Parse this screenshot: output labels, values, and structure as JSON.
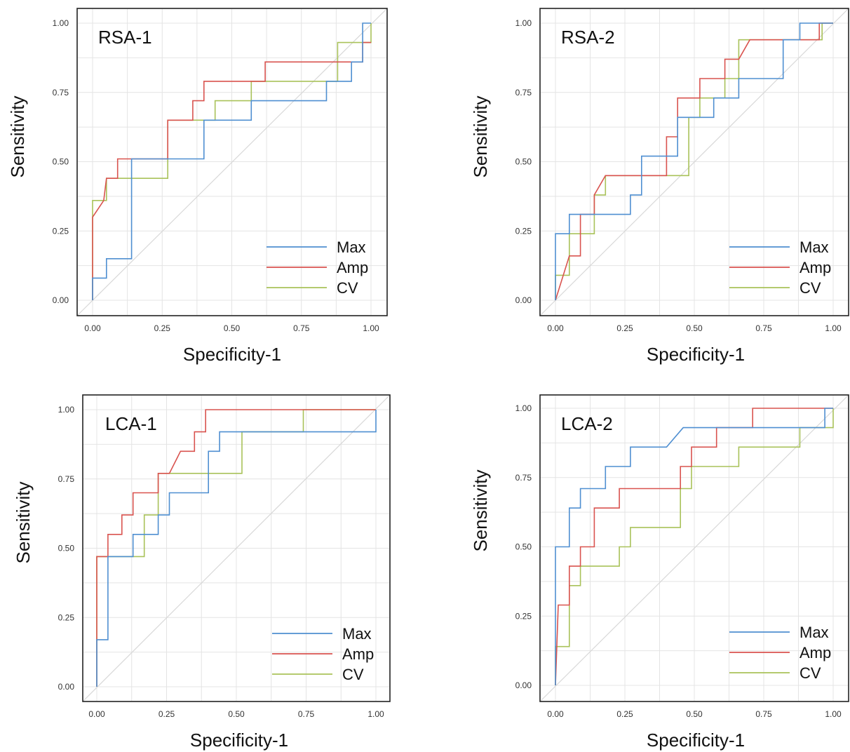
{
  "chart_data": [
    {
      "type": "line",
      "title": "RSA-1",
      "xlabel": "Specificity-1",
      "ylabel": "Sensitivity",
      "xlim": [
        0,
        1
      ],
      "ylim": [
        0,
        1
      ],
      "x_ticks": [
        "0.00",
        "0.25",
        "0.50",
        "0.75",
        "1.00"
      ],
      "y_ticks": [
        "0.00",
        "0.25",
        "0.50",
        "0.75",
        "1.00"
      ],
      "grid": true,
      "diagonal_reference": true,
      "legend_placement": "bottom-right",
      "series": [
        {
          "name": "Max",
          "color": "#4f8fd1",
          "points": [
            [
              0,
              0
            ],
            [
              0,
              0.08
            ],
            [
              0.05,
              0.08
            ],
            [
              0.05,
              0.15
            ],
            [
              0.14,
              0.15
            ],
            [
              0.14,
              0.51
            ],
            [
              0.4,
              0.51
            ],
            [
              0.4,
              0.65
            ],
            [
              0.57,
              0.65
            ],
            [
              0.57,
              0.72
            ],
            [
              0.84,
              0.72
            ],
            [
              0.84,
              0.79
            ],
            [
              0.93,
              0.79
            ],
            [
              0.93,
              0.86
            ],
            [
              0.97,
              0.86
            ],
            [
              0.97,
              1.0
            ],
            [
              1.0,
              1.0
            ]
          ]
        },
        {
          "name": "Amp",
          "color": "#d9534f",
          "points": [
            [
              0,
              0
            ],
            [
              0,
              0.3
            ],
            [
              0.04,
              0.36
            ],
            [
              0.05,
              0.44
            ],
            [
              0.09,
              0.44
            ],
            [
              0.09,
              0.51
            ],
            [
              0.27,
              0.51
            ],
            [
              0.27,
              0.65
            ],
            [
              0.36,
              0.65
            ],
            [
              0.36,
              0.72
            ],
            [
              0.4,
              0.72
            ],
            [
              0.4,
              0.79
            ],
            [
              0.62,
              0.79
            ],
            [
              0.62,
              0.86
            ],
            [
              0.97,
              0.86
            ],
            [
              0.97,
              0.93
            ],
            [
              1.0,
              0.93
            ]
          ]
        },
        {
          "name": "CV",
          "color": "#a9c25a",
          "points": [
            [
              0,
              0
            ],
            [
              0,
              0.36
            ],
            [
              0.05,
              0.36
            ],
            [
              0.05,
              0.44
            ],
            [
              0.27,
              0.44
            ],
            [
              0.27,
              0.65
            ],
            [
              0.44,
              0.65
            ],
            [
              0.44,
              0.72
            ],
            [
              0.57,
              0.72
            ],
            [
              0.57,
              0.79
            ],
            [
              0.88,
              0.79
            ],
            [
              0.88,
              0.93
            ],
            [
              0.96,
              0.93
            ],
            [
              0.96,
              0.93
            ],
            [
              1.0,
              0.93
            ],
            [
              1.0,
              1.0
            ]
          ]
        }
      ]
    },
    {
      "type": "line",
      "title": "RSA-2",
      "xlabel": "Specificity-1",
      "ylabel": "Sensitivity",
      "xlim": [
        0,
        1
      ],
      "ylim": [
        0,
        1
      ],
      "x_ticks": [
        "0.00",
        "0.25",
        "0.50",
        "0.75",
        "1.00"
      ],
      "y_ticks": [
        "0.00",
        "0.25",
        "0.50",
        "0.75",
        "1.00"
      ],
      "grid": true,
      "diagonal_reference": true,
      "legend_placement": "bottom-right",
      "series": [
        {
          "name": "Max",
          "color": "#4f8fd1",
          "points": [
            [
              0,
              0
            ],
            [
              0,
              0.24
            ],
            [
              0.05,
              0.24
            ],
            [
              0.05,
              0.31
            ],
            [
              0.27,
              0.31
            ],
            [
              0.27,
              0.38
            ],
            [
              0.31,
              0.38
            ],
            [
              0.31,
              0.52
            ],
            [
              0.44,
              0.52
            ],
            [
              0.44,
              0.66
            ],
            [
              0.57,
              0.66
            ],
            [
              0.57,
              0.73
            ],
            [
              0.66,
              0.73
            ],
            [
              0.66,
              0.8
            ],
            [
              0.82,
              0.8
            ],
            [
              0.82,
              0.94
            ],
            [
              0.88,
              0.94
            ],
            [
              0.88,
              1.0
            ],
            [
              1.0,
              1.0
            ]
          ]
        },
        {
          "name": "Amp",
          "color": "#d9534f",
          "points": [
            [
              0,
              0
            ],
            [
              0.05,
              0.16
            ],
            [
              0.09,
              0.16
            ],
            [
              0.09,
              0.31
            ],
            [
              0.14,
              0.31
            ],
            [
              0.14,
              0.38
            ],
            [
              0.18,
              0.45
            ],
            [
              0.4,
              0.45
            ],
            [
              0.4,
              0.59
            ],
            [
              0.44,
              0.59
            ],
            [
              0.44,
              0.73
            ],
            [
              0.52,
              0.73
            ],
            [
              0.52,
              0.8
            ],
            [
              0.61,
              0.8
            ],
            [
              0.61,
              0.87
            ],
            [
              0.66,
              0.87
            ],
            [
              0.7,
              0.94
            ],
            [
              0.95,
              0.94
            ],
            [
              0.95,
              1.0
            ],
            [
              1.0,
              1.0
            ]
          ]
        },
        {
          "name": "CV",
          "color": "#a9c25a",
          "points": [
            [
              0,
              0
            ],
            [
              0,
              0.09
            ],
            [
              0.05,
              0.09
            ],
            [
              0.05,
              0.24
            ],
            [
              0.14,
              0.24
            ],
            [
              0.14,
              0.38
            ],
            [
              0.18,
              0.38
            ],
            [
              0.18,
              0.45
            ],
            [
              0.48,
              0.45
            ],
            [
              0.48,
              0.66
            ],
            [
              0.52,
              0.66
            ],
            [
              0.52,
              0.73
            ],
            [
              0.61,
              0.73
            ],
            [
              0.61,
              0.8
            ],
            [
              0.66,
              0.8
            ],
            [
              0.66,
              0.94
            ],
            [
              0.96,
              0.94
            ],
            [
              0.96,
              1.0
            ],
            [
              1.0,
              1.0
            ]
          ]
        }
      ]
    },
    {
      "type": "line",
      "title": "LCA-1",
      "xlabel": "Specificity-1",
      "ylabel": "Sensitivity",
      "xlim": [
        0,
        1
      ],
      "ylim": [
        0,
        1
      ],
      "x_ticks": [
        "0.00",
        "0.25",
        "0.50",
        "0.75",
        "1.00"
      ],
      "y_ticks": [
        "0.00",
        "0.25",
        "0.50",
        "0.75",
        "1.00"
      ],
      "grid": true,
      "diagonal_reference": true,
      "legend_placement": "bottom-right",
      "series": [
        {
          "name": "Max",
          "color": "#4f8fd1",
          "points": [
            [
              0,
              0
            ],
            [
              0,
              0.17
            ],
            [
              0.04,
              0.17
            ],
            [
              0.04,
              0.47
            ],
            [
              0.13,
              0.47
            ],
            [
              0.13,
              0.55
            ],
            [
              0.22,
              0.55
            ],
            [
              0.22,
              0.62
            ],
            [
              0.26,
              0.62
            ],
            [
              0.26,
              0.7
            ],
            [
              0.4,
              0.7
            ],
            [
              0.4,
              0.85
            ],
            [
              0.44,
              0.85
            ],
            [
              0.44,
              0.92
            ],
            [
              1.0,
              0.92
            ],
            [
              1.0,
              1.0
            ]
          ]
        },
        {
          "name": "Amp",
          "color": "#d9534f",
          "points": [
            [
              0,
              0
            ],
            [
              0,
              0.47
            ],
            [
              0.04,
              0.47
            ],
            [
              0.04,
              0.55
            ],
            [
              0.09,
              0.55
            ],
            [
              0.09,
              0.62
            ],
            [
              0.13,
              0.62
            ],
            [
              0.13,
              0.7
            ],
            [
              0.22,
              0.7
            ],
            [
              0.22,
              0.77
            ],
            [
              0.26,
              0.77
            ],
            [
              0.3,
              0.85
            ],
            [
              0.35,
              0.85
            ],
            [
              0.35,
              0.92
            ],
            [
              0.39,
              0.92
            ],
            [
              0.39,
              1.0
            ],
            [
              1.0,
              1.0
            ]
          ]
        },
        {
          "name": "CV",
          "color": "#a9c25a",
          "points": [
            [
              0,
              0
            ],
            [
              0,
              0.47
            ],
            [
              0.17,
              0.47
            ],
            [
              0.17,
              0.62
            ],
            [
              0.22,
              0.62
            ],
            [
              0.22,
              0.77
            ],
            [
              0.52,
              0.77
            ],
            [
              0.52,
              0.92
            ],
            [
              0.74,
              0.92
            ],
            [
              0.74,
              1.0
            ],
            [
              1.0,
              1.0
            ]
          ]
        }
      ]
    },
    {
      "type": "line",
      "title": "LCA-2",
      "xlabel": "Specificity-1",
      "ylabel": "Sensitivity",
      "xlim": [
        0,
        1
      ],
      "ylim": [
        0,
        1
      ],
      "x_ticks": [
        "0.00",
        "0.25",
        "0.50",
        "0.75",
        "1.00"
      ],
      "y_ticks": [
        "0.00",
        "0.25",
        "0.50",
        "0.75",
        "1.00"
      ],
      "grid": true,
      "diagonal_reference": true,
      "legend_placement": "bottom-right",
      "series": [
        {
          "name": "Max",
          "color": "#4f8fd1",
          "points": [
            [
              0,
              0
            ],
            [
              0,
              0.5
            ],
            [
              0.05,
              0.5
            ],
            [
              0.05,
              0.64
            ],
            [
              0.09,
              0.64
            ],
            [
              0.09,
              0.71
            ],
            [
              0.18,
              0.71
            ],
            [
              0.18,
              0.79
            ],
            [
              0.27,
              0.79
            ],
            [
              0.27,
              0.86
            ],
            [
              0.4,
              0.86
            ],
            [
              0.46,
              0.93
            ],
            [
              0.97,
              0.93
            ],
            [
              0.97,
              1.0
            ],
            [
              1.0,
              1.0
            ]
          ]
        },
        {
          "name": "Amp",
          "color": "#d9534f",
          "points": [
            [
              0,
              0
            ],
            [
              0.01,
              0.29
            ],
            [
              0.05,
              0.29
            ],
            [
              0.05,
              0.43
            ],
            [
              0.09,
              0.43
            ],
            [
              0.09,
              0.5
            ],
            [
              0.14,
              0.5
            ],
            [
              0.14,
              0.64
            ],
            [
              0.23,
              0.64
            ],
            [
              0.23,
              0.71
            ],
            [
              0.45,
              0.71
            ],
            [
              0.45,
              0.79
            ],
            [
              0.49,
              0.79
            ],
            [
              0.49,
              0.86
            ],
            [
              0.58,
              0.86
            ],
            [
              0.58,
              0.93
            ],
            [
              0.71,
              0.93
            ],
            [
              0.71,
              1.0
            ],
            [
              1.0,
              1.0
            ]
          ]
        },
        {
          "name": "CV",
          "color": "#a9c25a",
          "points": [
            [
              0,
              0
            ],
            [
              0,
              0.14
            ],
            [
              0.05,
              0.14
            ],
            [
              0.05,
              0.36
            ],
            [
              0.09,
              0.36
            ],
            [
              0.09,
              0.43
            ],
            [
              0.23,
              0.43
            ],
            [
              0.23,
              0.5
            ],
            [
              0.27,
              0.5
            ],
            [
              0.27,
              0.57
            ],
            [
              0.45,
              0.57
            ],
            [
              0.45,
              0.71
            ],
            [
              0.49,
              0.71
            ],
            [
              0.49,
              0.79
            ],
            [
              0.66,
              0.79
            ],
            [
              0.66,
              0.86
            ],
            [
              0.88,
              0.86
            ],
            [
              0.88,
              0.93
            ],
            [
              1.0,
              0.93
            ],
            [
              1.0,
              1.0
            ]
          ]
        }
      ]
    }
  ]
}
